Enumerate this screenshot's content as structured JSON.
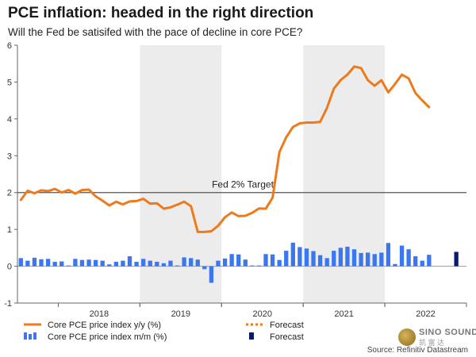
{
  "title": "PCE inflation: headed in the right direction",
  "subtitle": "Will the Fed be satisifed with the pace of decline in core PCE?",
  "source": "Source: Refinitiv Datastream",
  "watermark": {
    "brand": "SINO SOUND",
    "sub": "凯 富 达"
  },
  "colors": {
    "line": "#ee7a1c",
    "bar": "#3b78f0",
    "bar_forecast": "#0a1a6e",
    "shade": "#ececec",
    "target": "#555555"
  },
  "chart_data": {
    "type": "line+bar",
    "ylim": [
      -1,
      6
    ],
    "yticks": [
      -1,
      0,
      1,
      2,
      3,
      4,
      5,
      6
    ],
    "x_range": [
      "2017-07",
      "2022-12"
    ],
    "year_labels": [
      "2018",
      "2019",
      "2020",
      "2021",
      "2022"
    ],
    "shaded_years": [
      "2019",
      "2021"
    ],
    "annotation": {
      "text": "Fed 2% Target",
      "y": 2
    },
    "legend": [
      {
        "label": "Core PCE price index y/y (%)",
        "style": "line"
      },
      {
        "label": "Forecast",
        "style": "dotted-line"
      },
      {
        "label": "Core PCE price index m/m (%)",
        "style": "bar"
      },
      {
        "label": "Forecast",
        "style": "dark-bar"
      }
    ],
    "series": [
      {
        "name": "Core PCE price index y/y (%)",
        "kind": "line",
        "start": "2017-07",
        "values": [
          1.8,
          2.05,
          1.98,
          2.06,
          2.04,
          2.1,
          2.0,
          2.07,
          1.97,
          2.07,
          2.08,
          1.9,
          1.78,
          1.65,
          1.75,
          1.68,
          1.76,
          1.77,
          1.83,
          1.7,
          1.71,
          1.56,
          1.6,
          1.67,
          1.75,
          1.63,
          0.93,
          0.93,
          0.95,
          1.1,
          1.33,
          1.46,
          1.36,
          1.37,
          1.45,
          1.57,
          1.56,
          1.86,
          3.1,
          3.5,
          3.78,
          3.88,
          3.9,
          3.9,
          3.92,
          4.3,
          4.82,
          5.05,
          5.2,
          5.42,
          5.38,
          5.05,
          4.9,
          5.05,
          4.72,
          4.95,
          5.2,
          5.1,
          4.7,
          4.5,
          4.32
        ]
      },
      {
        "name": "Core PCE price index m/m (%)",
        "kind": "bar",
        "start": "2017-07",
        "values": [
          0.22,
          0.15,
          0.23,
          0.19,
          0.2,
          0.12,
          0.13,
          0.02,
          0.2,
          0.17,
          0.18,
          0.17,
          0.15,
          0.05,
          0.12,
          0.15,
          0.27,
          0.12,
          0.2,
          0.15,
          0.12,
          0.08,
          0.15,
          0.02,
          0.24,
          0.22,
          0.18,
          -0.08,
          -0.45,
          0.15,
          0.21,
          0.33,
          0.32,
          0.18,
          0.02,
          0.02,
          0.33,
          0.32,
          0.17,
          0.42,
          0.64,
          0.52,
          0.48,
          0.41,
          0.3,
          0.22,
          0.42,
          0.5,
          0.53,
          0.46,
          0.36,
          0.37,
          0.33,
          0.37,
          0.63,
          0.06,
          0.56,
          0.46,
          0.27,
          0.15,
          0.31
        ]
      },
      {
        "name": "Forecast",
        "kind": "bar-forecast",
        "point": {
          "x": "2022-11",
          "y": 0.39
        }
      }
    ]
  }
}
